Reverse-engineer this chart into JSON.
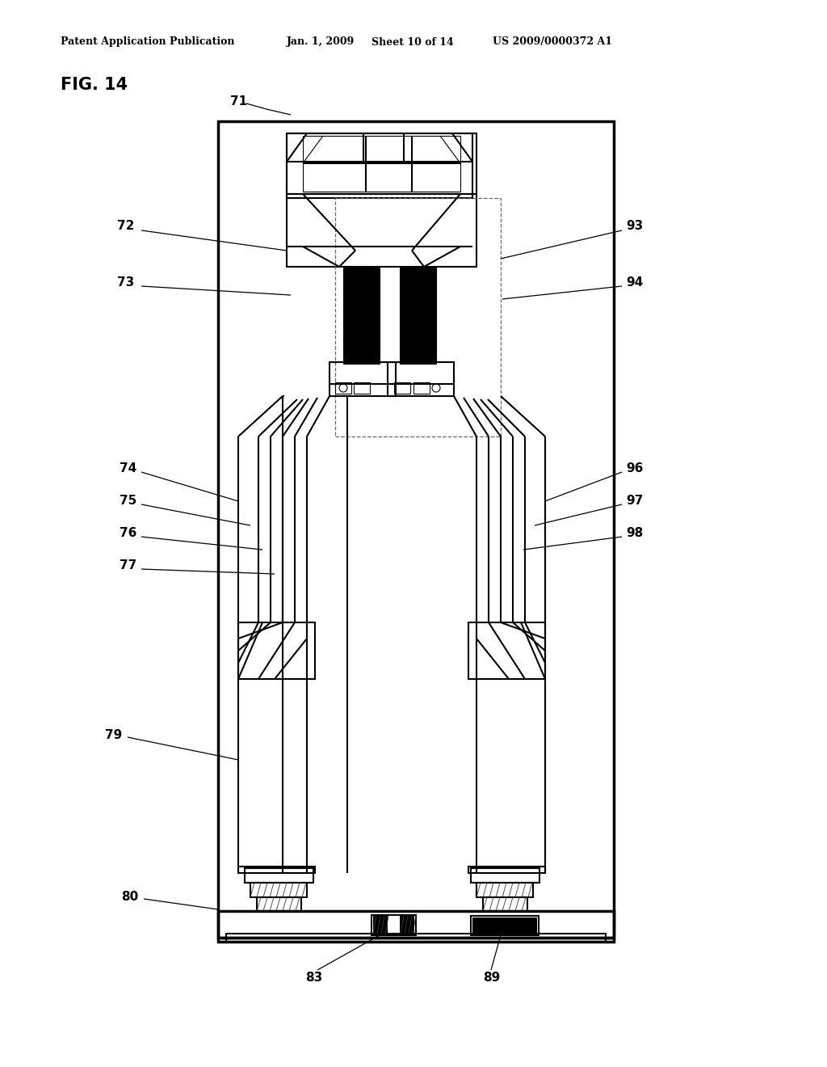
{
  "bg_color": "#ffffff",
  "line_color": "#000000",
  "header_text": "Patent Application Publication",
  "header_date": "Jan. 1, 2009",
  "header_sheet": "Sheet 10 of 14",
  "header_patent": "US 2009/0000372 A1",
  "fig_label": "FIG. 14"
}
